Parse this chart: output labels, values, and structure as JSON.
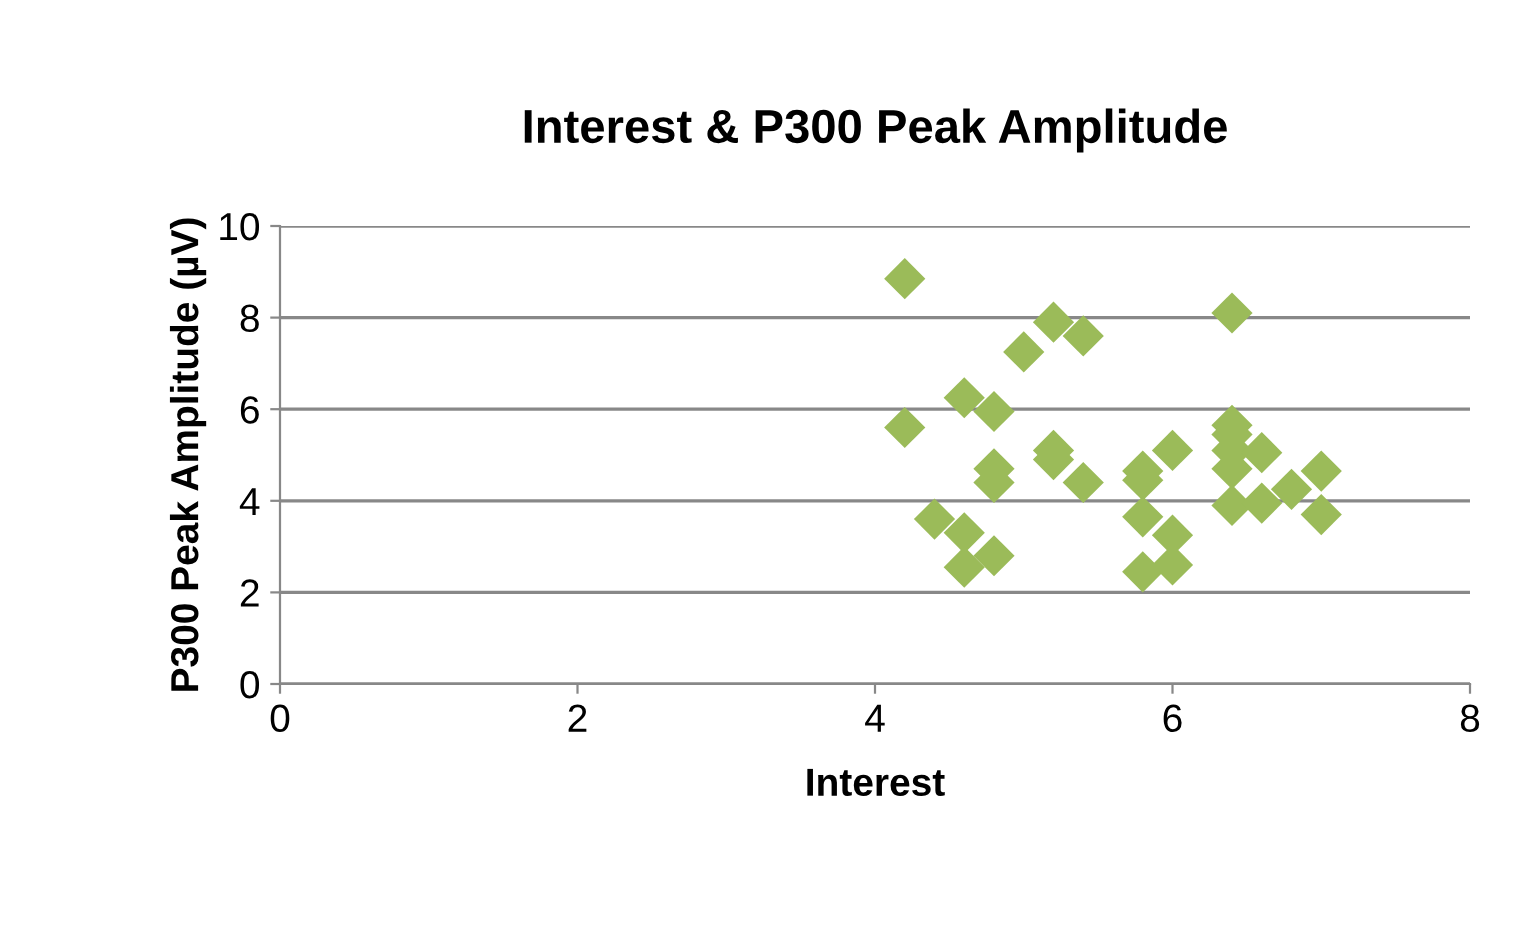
{
  "chart_data": {
    "type": "scatter",
    "title": "Interest & P300 Peak Amplitude",
    "xlabel": "Interest",
    "ylabel": "P300 Peak Amplitude (µV)",
    "series": [
      {
        "color": "#9bbb59",
        "x": [
          4.2,
          4.2,
          4.4,
          4.6,
          4.6,
          4.6,
          4.8,
          4.8,
          4.8,
          4.8,
          5.0,
          5.2,
          5.4,
          5.2,
          5.2,
          5.4,
          5.8,
          5.8,
          5.8,
          5.8,
          6.0,
          6.0,
          6.0,
          6.4,
          6.4,
          6.4,
          6.4,
          6.4,
          6.4,
          6.6,
          6.6,
          6.8,
          7.0,
          7.0
        ],
        "values": [
          8.85,
          5.6,
          3.6,
          6.25,
          3.3,
          2.55,
          5.95,
          4.7,
          4.4,
          2.8,
          7.25,
          7.9,
          7.6,
          5.1,
          4.9,
          4.4,
          4.65,
          4.45,
          3.65,
          2.45,
          5.1,
          3.25,
          2.6,
          8.1,
          5.65,
          5.45,
          5.1,
          4.7,
          3.9,
          5.05,
          3.95,
          4.25,
          4.65,
          3.7
        ]
      }
    ],
    "marker": "diamond",
    "xlim": [
      0,
      8
    ],
    "ylim": [
      0,
      10
    ],
    "xticks": [
      0,
      2,
      4,
      6,
      8
    ],
    "yticks": [
      0,
      2,
      4,
      6,
      8,
      10
    ],
    "grid": "y",
    "legend": false
  }
}
